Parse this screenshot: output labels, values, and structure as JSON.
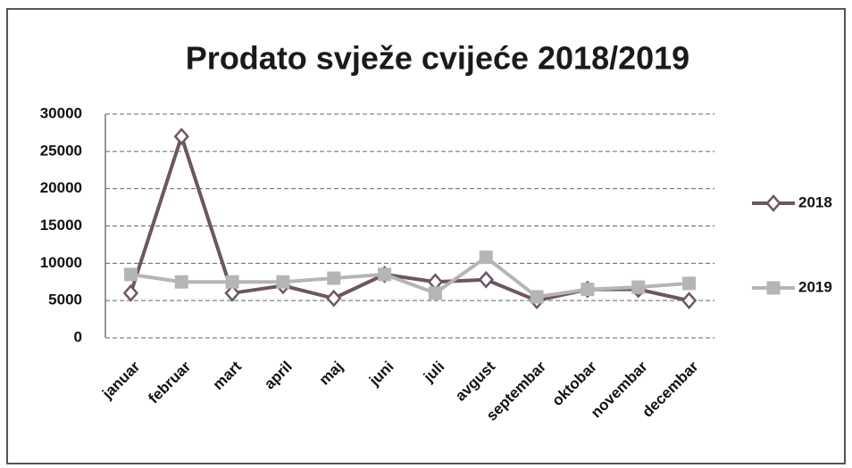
{
  "chart_data": {
    "type": "line",
    "title": "Prodato svježe cvijeće 2018/2019",
    "categories": [
      "januar",
      "februar",
      "mart",
      "april",
      "maj",
      "juni",
      "juli",
      "avgust",
      "septembar",
      "oktobar",
      "novembar",
      "decembar"
    ],
    "series": [
      {
        "name": "2018",
        "color": "#6e5563",
        "marker": "diamond",
        "values": [
          6000,
          27000,
          6000,
          7000,
          5300,
          8500,
          7500,
          7800,
          5000,
          6500,
          6500,
          5000
        ]
      },
      {
        "name": "2019",
        "color": "#b5b5b5",
        "marker": "square",
        "values": [
          8500,
          7500,
          7500,
          7500,
          8000,
          8500,
          6000,
          10800,
          5500,
          6500,
          6800,
          7300
        ]
      }
    ],
    "ylim": [
      0,
      30000
    ],
    "yticks": [
      0,
      5000,
      10000,
      15000,
      20000,
      25000,
      30000
    ],
    "grid": true,
    "legend": "right"
  }
}
